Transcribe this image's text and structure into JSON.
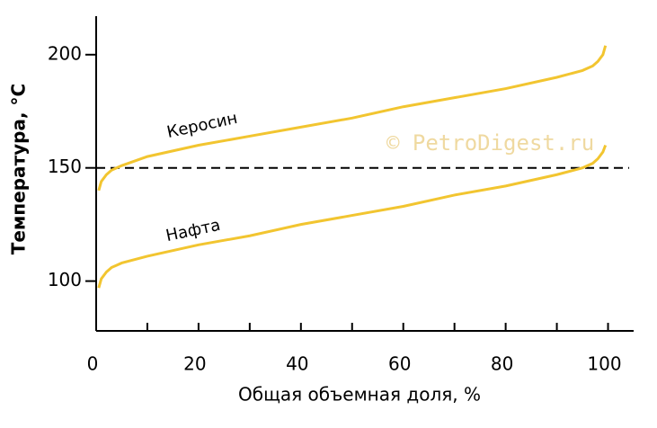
{
  "chart_data": {
    "type": "line",
    "x_label": "Общая объемная доля, %",
    "y_label": "Температура, °C",
    "watermark": "© PetroDigest.ru",
    "x": [
      0.5,
      1,
      2,
      3,
      5,
      10,
      20,
      30,
      40,
      50,
      60,
      70,
      80,
      90,
      95,
      97,
      98,
      99,
      99.5
    ],
    "series": [
      {
        "name": "Керосин",
        "color": "#f2c530",
        "values": [
          140,
          144,
          147,
          149,
          151,
          155,
          160,
          164,
          168,
          172,
          177,
          181,
          185,
          190,
          193,
          195,
          197,
          200,
          204
        ]
      },
      {
        "name": "Нафта",
        "color": "#f2c530",
        "values": [
          97,
          101,
          104,
          106,
          108,
          111,
          116,
          120,
          125,
          129,
          133,
          138,
          142,
          147,
          150,
          152,
          154,
          157,
          160
        ]
      }
    ],
    "xlim": [
      0,
      105
    ],
    "xticks": [
      0,
      20,
      40,
      60,
      80,
      100
    ],
    "xminorticks": [
      10,
      30,
      50,
      70,
      90
    ],
    "ylim": [
      78,
      217
    ],
    "yticks": [
      100,
      150,
      200
    ],
    "hline": 150
  }
}
